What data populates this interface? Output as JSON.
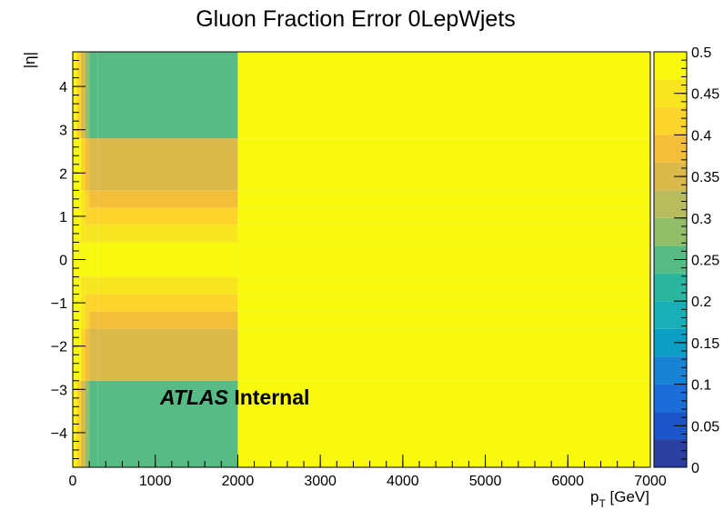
{
  "chart_data": {
    "type": "heatmap",
    "title": "Gluon Fraction Error 0LepWjets",
    "xlabel_main": "p",
    "xlabel_sub": "T",
    "xlabel_unit": " [GeV]",
    "ylabel": "|η|",
    "xlim": [
      0,
      7000
    ],
    "ylim": [
      -4.8,
      4.8
    ],
    "zlim": [
      0,
      0.5
    ],
    "x_ticks": [
      0,
      1000,
      2000,
      3000,
      4000,
      5000,
      6000,
      7000
    ],
    "x_tick_labels": [
      "0",
      "1000",
      "2000",
      "3000",
      "4000",
      "5000",
      "6000",
      "7000"
    ],
    "y_ticks": [
      -4,
      -3,
      -2,
      -1,
      0,
      1,
      2,
      3,
      4
    ],
    "y_tick_labels": [
      "−4",
      "−3",
      "−2",
      "−1",
      "0",
      "1",
      "2",
      "3",
      "4"
    ],
    "z_ticks": [
      0,
      0.05,
      0.1,
      0.15,
      0.2,
      0.25,
      0.3,
      0.35,
      0.4,
      0.45,
      0.5
    ],
    "z_tick_labels": [
      "0",
      "0.05",
      "0.1",
      "0.15",
      "0.2",
      "0.25",
      "0.3",
      "0.35",
      "0.4",
      "0.45",
      "0.5"
    ],
    "x_edges": [
      0,
      50,
      100,
      150,
      200,
      300,
      2000,
      7000
    ],
    "y_edges": [
      -4.8,
      -2.8,
      -1.6,
      -1.2,
      -0.8,
      -0.4,
      0.4,
      0.8,
      1.2,
      1.6,
      2.8,
      4.8
    ],
    "values": [
      [
        0.47,
        0.43,
        0.35,
        0.27,
        0.25,
        0.25,
        0.5
      ],
      [
        0.49,
        0.47,
        0.42,
        0.38,
        0.35,
        0.35,
        0.5
      ],
      [
        0.49,
        0.48,
        0.45,
        0.42,
        0.4,
        0.4,
        0.5
      ],
      [
        0.49,
        0.48,
        0.45,
        0.43,
        0.41,
        0.41,
        0.5
      ],
      [
        0.49,
        0.48,
        0.46,
        0.45,
        0.44,
        0.44,
        0.5
      ],
      [
        0.5,
        0.49,
        0.48,
        0.47,
        0.47,
        0.47,
        0.5
      ],
      [
        0.49,
        0.48,
        0.46,
        0.45,
        0.44,
        0.44,
        0.5
      ],
      [
        0.49,
        0.48,
        0.45,
        0.43,
        0.41,
        0.41,
        0.5
      ],
      [
        0.49,
        0.48,
        0.45,
        0.42,
        0.4,
        0.4,
        0.5
      ],
      [
        0.49,
        0.47,
        0.42,
        0.38,
        0.35,
        0.35,
        0.5
      ],
      [
        0.47,
        0.43,
        0.35,
        0.27,
        0.25,
        0.25,
        0.5
      ]
    ],
    "palette": [
      "#2b3fa0",
      "#1c56c8",
      "#1b6ed9",
      "#1883d3",
      "#0d9ec5",
      "#19afb6",
      "#2ab69f",
      "#56bb85",
      "#93bf6a",
      "#b8bc5c",
      "#dbb94a",
      "#f3be3a",
      "#fcd42b",
      "#f7e61f",
      "#f9f90f"
    ],
    "annotation_bold_italic": "ATLAS",
    "annotation_bold": " Internal",
    "grid": false
  }
}
